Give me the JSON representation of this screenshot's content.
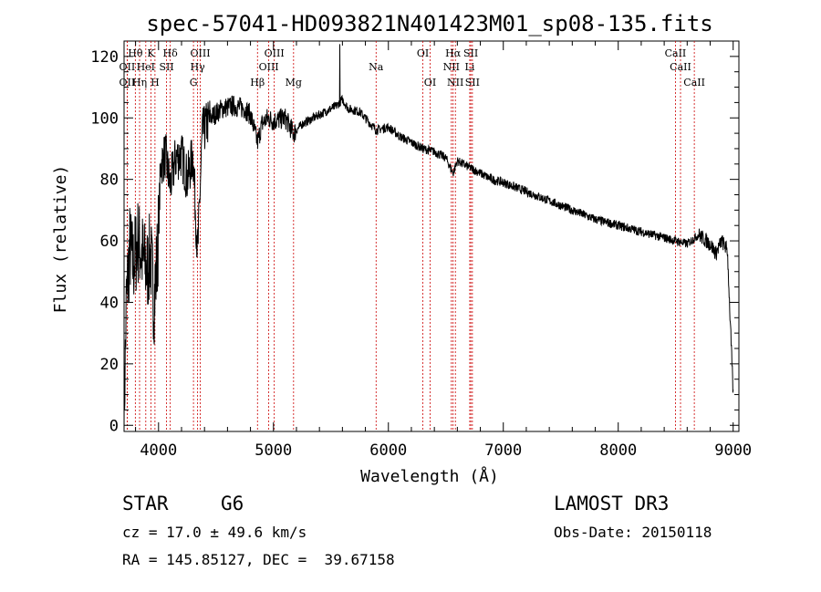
{
  "chart_data": {
    "type": "line",
    "title": "spec-57041-HD093821N401423M01_sp08-135.fits",
    "xlabel": "Wavelength (Å)",
    "ylabel": "Flux (relative)",
    "xlim": [
      3700,
      9050
    ],
    "ylim": [
      -2,
      125
    ],
    "xticks": [
      4000,
      5000,
      6000,
      7000,
      8000,
      9000
    ],
    "yticks": [
      0,
      20,
      40,
      60,
      80,
      100,
      120
    ],
    "spectrum_anchors": {
      "x": [
        3700,
        3720,
        3750,
        3780,
        3820,
        3860,
        3900,
        3930,
        3960,
        3990,
        4020,
        4060,
        4101,
        4150,
        4200,
        4250,
        4300,
        4340,
        4380,
        4450,
        4550,
        4650,
        4750,
        4800,
        4861,
        4900,
        4950,
        5000,
        5100,
        5175,
        5250,
        5350,
        5450,
        5550,
        5600,
        5650,
        5750,
        5893,
        6000,
        6100,
        6200,
        6300,
        6400,
        6500,
        6563,
        6600,
        6700,
        6800,
        6900,
        7000,
        7200,
        7400,
        7600,
        7800,
        8000,
        8200,
        8400,
        8500,
        8600,
        8700,
        8800,
        8850,
        8900,
        8950,
        9000
      ],
      "y": [
        2,
        40,
        58,
        52,
        60,
        55,
        50,
        56,
        40,
        55,
        85,
        88,
        78,
        87,
        88,
        80,
        88,
        55,
        95,
        100,
        103,
        104,
        103,
        101,
        92,
        98,
        100,
        99,
        100,
        95,
        98,
        100,
        102,
        104,
        106,
        103,
        102,
        96,
        97,
        94,
        92,
        90,
        89,
        87,
        82,
        86,
        84,
        82,
        80,
        79,
        76,
        73,
        70,
        67,
        65,
        63,
        61,
        60,
        59,
        62,
        59,
        56,
        60,
        57,
        10
      ]
    },
    "series": [
      {
        "name": "flux"
      }
    ],
    "annotations": {
      "spike": {
        "x": 5577,
        "y": 124
      },
      "lines": [
        {
          "label": "Hθ",
          "x": 3798,
          "row": 1
        },
        {
          "label": "OII",
          "x": 3727,
          "row": 2
        },
        {
          "label": "OII",
          "x": 3727,
          "row": 3
        },
        {
          "label": "Hη",
          "x": 3835,
          "row": 3
        },
        {
          "label": "HeI",
          "x": 3889,
          "row": 2
        },
        {
          "label": "K",
          "x": 3934,
          "row": 1
        },
        {
          "label": "H",
          "x": 3969,
          "row": 3
        },
        {
          "label": "Hδ",
          "x": 4102,
          "row": 1
        },
        {
          "label": "SII",
          "x": 4070,
          "row": 2
        },
        {
          "label": "OIII",
          "x": 4363,
          "row": 1
        },
        {
          "label": "Hγ",
          "x": 4340,
          "row": 2
        },
        {
          "label": "G",
          "x": 4304,
          "row": 3
        },
        {
          "label": "Hβ",
          "x": 4861,
          "row": 3
        },
        {
          "label": "OIII",
          "x": 5007,
          "row": 1
        },
        {
          "label": "OIII",
          "x": 4959,
          "row": 2
        },
        {
          "label": "Mg",
          "x": 5175,
          "row": 3
        },
        {
          "label": "Na",
          "x": 5893,
          "row": 2
        },
        {
          "label": "OI",
          "x": 6300,
          "row": 1
        },
        {
          "label": "OI",
          "x": 6363,
          "row": 3
        },
        {
          "label": "Hα",
          "x": 6563,
          "row": 1
        },
        {
          "label": "NII",
          "x": 6548,
          "row": 2
        },
        {
          "label": "NII",
          "x": 6583,
          "row": 3
        },
        {
          "label": "SII",
          "x": 6717,
          "row": 1
        },
        {
          "label": "Li",
          "x": 6708,
          "row": 2
        },
        {
          "label": "SII",
          "x": 6731,
          "row": 3
        },
        {
          "label": "CaII",
          "x": 8498,
          "row": 1
        },
        {
          "label": "CaII",
          "x": 8542,
          "row": 2
        },
        {
          "label": "CaII",
          "x": 8662,
          "row": 3
        }
      ]
    }
  },
  "info": {
    "object_type": "STAR",
    "subclass": "G6",
    "survey": "LAMOST DR3",
    "redshift": "cz = 17.0 ± 49.6 km/s",
    "obs_date": "Obs-Date: 20150118",
    "coords": "RA = 145.85127, DEC =  39.67158"
  },
  "colors": {
    "spectrum": "#000000",
    "line_markers": "#cc0000",
    "axes": "#000000",
    "background": "#ffffff"
  }
}
